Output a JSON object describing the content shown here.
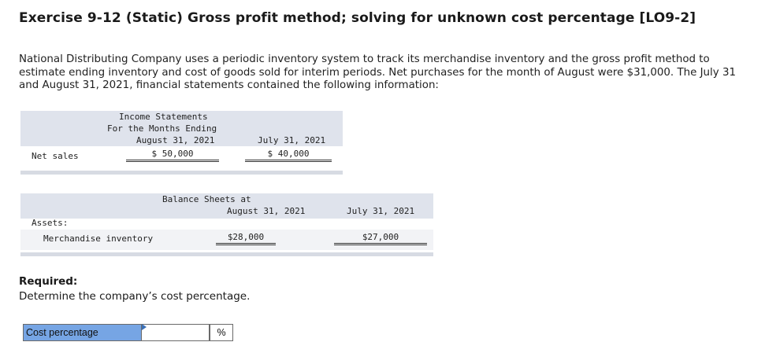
{
  "title": "Exercise 9-12 (Static) Gross profit method; solving for unknown cost percentage [LO9-2]",
  "intro": "National Distributing Company uses a periodic inventory system to track its merchandise inventory and the gross profit method to estimate ending inventory and cost of goods sold for interim periods. Net purchases for the month of August were $31,000. The July 31 and August 31, 2021, financial statements contained the following information:",
  "income_statements": {
    "heading_line1": "Income Statements",
    "heading_line2": "For the Months Ending",
    "col1_header": "August 31, 2021",
    "col2_header": "July 31, 2021",
    "row_label": "Net sales",
    "col1_value": "$ 50,000",
    "col2_value": "$ 40,000"
  },
  "balance_sheets": {
    "heading": "Balance Sheets at",
    "col1_header": "August 31, 2021",
    "col2_header": "July 31, 2021",
    "section_label": "Assets:",
    "row_label": "Merchandise inventory",
    "col1_value": "$28,000",
    "col2_value": "$27,000"
  },
  "required": {
    "label": "Required:",
    "text": "Determine the company’s cost percentage."
  },
  "answer": {
    "label": "Cost percentage",
    "value": "",
    "unit": "%"
  }
}
